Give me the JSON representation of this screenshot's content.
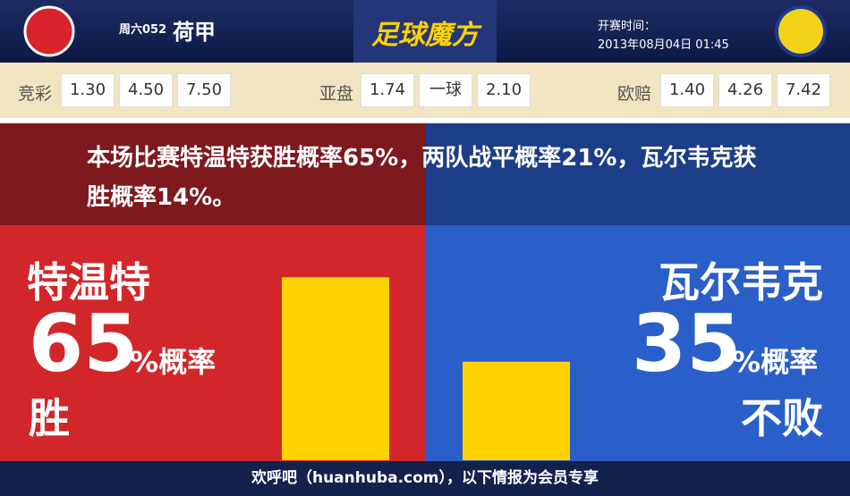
{
  "header": {
    "match_no": "周六052",
    "league": "荷甲",
    "brand": "足球魔方",
    "time_label": "开赛时间：",
    "time": "2013年08月04日 01:45"
  },
  "odds": [
    {
      "label": "竞彩",
      "values": [
        "1.30",
        "4.50",
        "7.50"
      ]
    },
    {
      "label": "亚盘",
      "values": [
        "1.74",
        "一球",
        "2.10"
      ]
    },
    {
      "label": "欧赔",
      "values": [
        "1.40",
        "4.26",
        "7.42"
      ]
    }
  ],
  "summary": "本场比赛特温特获胜概率65%，两队战平概率21%，瓦尔韦克获胜概率14%。",
  "teams": [
    {
      "name": "特温特",
      "pct": 65,
      "suffix": "%概率",
      "outcome": "胜"
    },
    {
      "name": "瓦尔韦克",
      "pct": 35,
      "suffix": "%概率",
      "outcome": "不败"
    }
  ],
  "footer": "欢呼吧（huanhuba.com），以下情报为会员专享"
}
